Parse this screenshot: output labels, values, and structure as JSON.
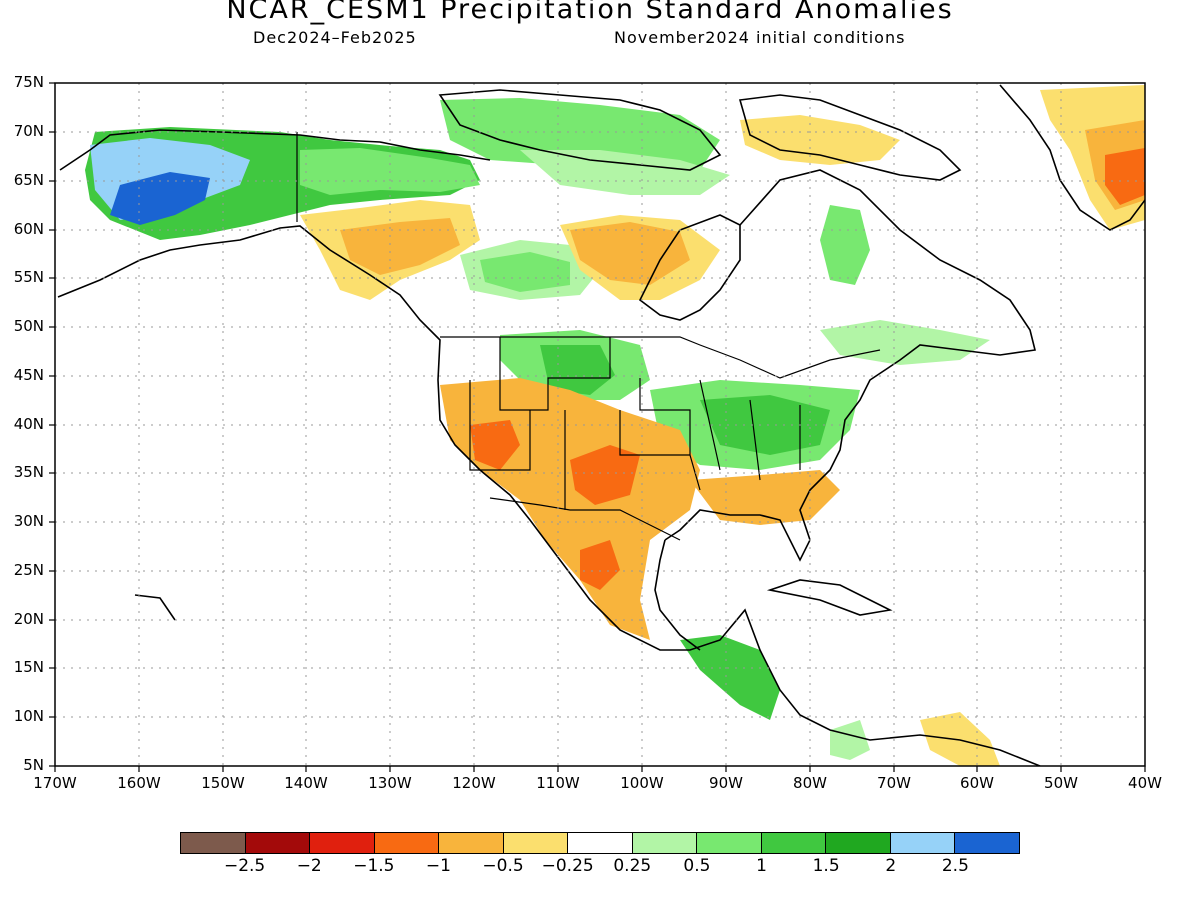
{
  "title": "NCAR_CESM1 Precipitation Standard Anomalies",
  "subtitle_left": "Dec2024–Feb2025",
  "subtitle_right": "November2024 initial conditions",
  "lat_labels": [
    "75N",
    "70N",
    "65N",
    "60N",
    "55N",
    "50N",
    "45N",
    "40N",
    "35N",
    "30N",
    "25N",
    "20N",
    "15N",
    "10N",
    "5N"
  ],
  "lon_labels": [
    "170W",
    "160W",
    "150W",
    "140W",
    "130W",
    "120W",
    "110W",
    "100W",
    "90W",
    "80W",
    "70W",
    "60W",
    "50W",
    "40W"
  ],
  "colorbar": {
    "colors": [
      "#7d5a4c",
      "#a30a0a",
      "#e0200e",
      "#f86a12",
      "#f8b43c",
      "#fbdf6e",
      "#ffffff",
      "#b2f5a6",
      "#78e870",
      "#40c840",
      "#20a820",
      "#96d2f8",
      "#1a64d2"
    ],
    "labels": [
      "−2.5",
      "−2",
      "−1.5",
      "−1",
      "−0.5",
      "−0.25",
      "0.25",
      "0.5",
      "1",
      "1.5",
      "2",
      "2.5"
    ]
  },
  "map": {
    "region": "North America",
    "lon_range": [
      -170,
      -40
    ],
    "lat_range": [
      5,
      75
    ],
    "variable": "Precipitation standard anomaly"
  }
}
